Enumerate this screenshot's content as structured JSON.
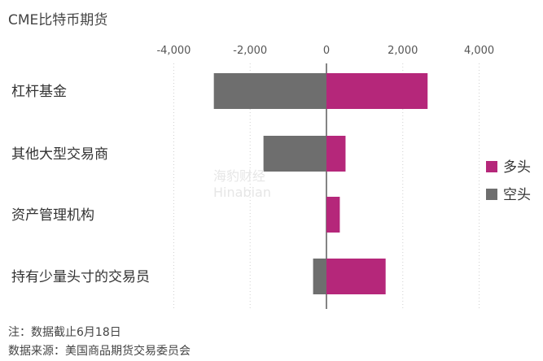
{
  "title": "CME比特币期货",
  "chart_data": {
    "type": "bar",
    "orientation": "horizontal",
    "stacked": true,
    "categories": [
      "杠杆基金",
      "其他大型交易商",
      "资产管理机构",
      "持有少量头寸的交易员"
    ],
    "series": [
      {
        "name": "多头",
        "values": [
          2650,
          500,
          350,
          1550
        ],
        "color": "#b5277a"
      },
      {
        "name": "空头",
        "values": [
          -2950,
          -1650,
          0,
          -350
        ],
        "color": "#6e6e6e"
      }
    ],
    "xlim": [
      -4500,
      4500
    ],
    "xticks": [
      -4000,
      -2000,
      0,
      2000,
      4000
    ],
    "xtick_labels": [
      "-4,000",
      "-2,000",
      "0",
      "2,000",
      "4,000"
    ],
    "grid": "vertical dotted",
    "legend_position": "right"
  },
  "notes": {
    "note": "注：数据截止6月18日",
    "source": "数据来源：美国商品期货交易委员会"
  },
  "watermark": {
    "cn": "海豹财经",
    "en": "Hinabian"
  }
}
